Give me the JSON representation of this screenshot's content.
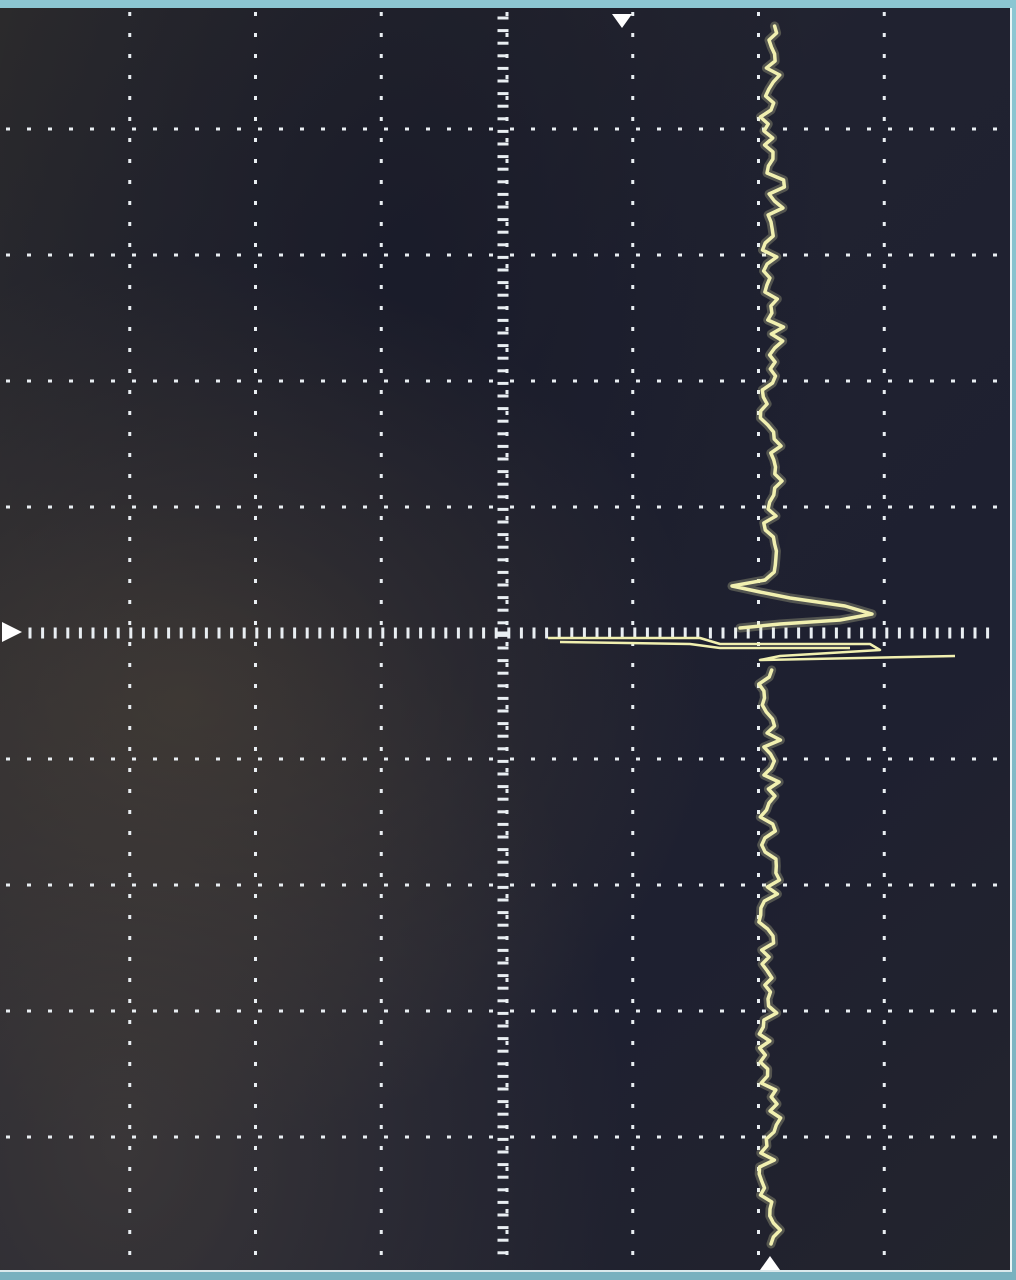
{
  "display": {
    "grid_divisions": {
      "horizontal": 8,
      "vertical": 10
    },
    "colors": {
      "bezel": "#7fb8c4",
      "screen": "#1e2030",
      "graticule": "#e9eef2",
      "trace": "#f1f0b0",
      "marker": "#ffffff"
    },
    "trigger_marker_icon": "triangle-down-icon",
    "ground_marker_icon": "triangle-right-icon",
    "position_marker_icon": "triangle-up-icon"
  }
}
